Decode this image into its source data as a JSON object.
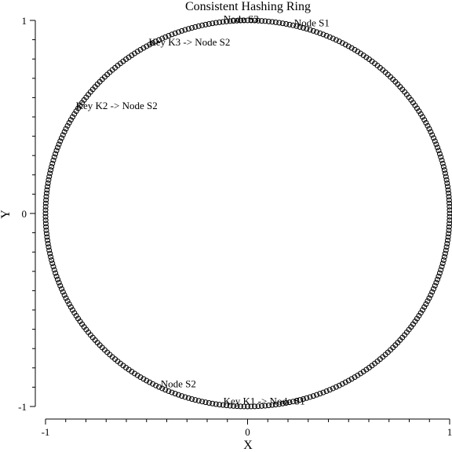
{
  "chart_data": {
    "type": "scatter",
    "title": "Consistent Hashing Ring",
    "xlabel": "X",
    "ylabel": "Y",
    "xlim": [
      -1,
      1
    ],
    "ylim": [
      -1,
      1
    ],
    "x_ticks": [
      {
        "value": -1,
        "label": "-1"
      },
      {
        "value": 0,
        "label": "0"
      },
      {
        "value": 1,
        "label": "1"
      }
    ],
    "y_ticks": [
      {
        "value": -1,
        "label": "-1"
      },
      {
        "value": 0,
        "label": "0"
      },
      {
        "value": 1,
        "label": "1"
      }
    ],
    "grid": false,
    "legend": "none",
    "series": [
      {
        "marker": "open-circle",
        "ring_radius": 1,
        "point_count": 360
      }
    ],
    "annotations": [
      {
        "text": "Node S3",
        "x": -0.12,
        "y": 0.99
      },
      {
        "text": "Node S1",
        "x": 0.23,
        "y": 0.97
      },
      {
        "text": "Key K3 -> Node S2",
        "x": -0.49,
        "y": 0.87
      },
      {
        "text": "Key K2 -> Node S2",
        "x": -0.85,
        "y": 0.54
      },
      {
        "text": "Node S2",
        "x": -0.43,
        "y": -0.9
      },
      {
        "text": "Key K1 -> Node S1",
        "x": -0.12,
        "y": -0.99
      }
    ]
  }
}
